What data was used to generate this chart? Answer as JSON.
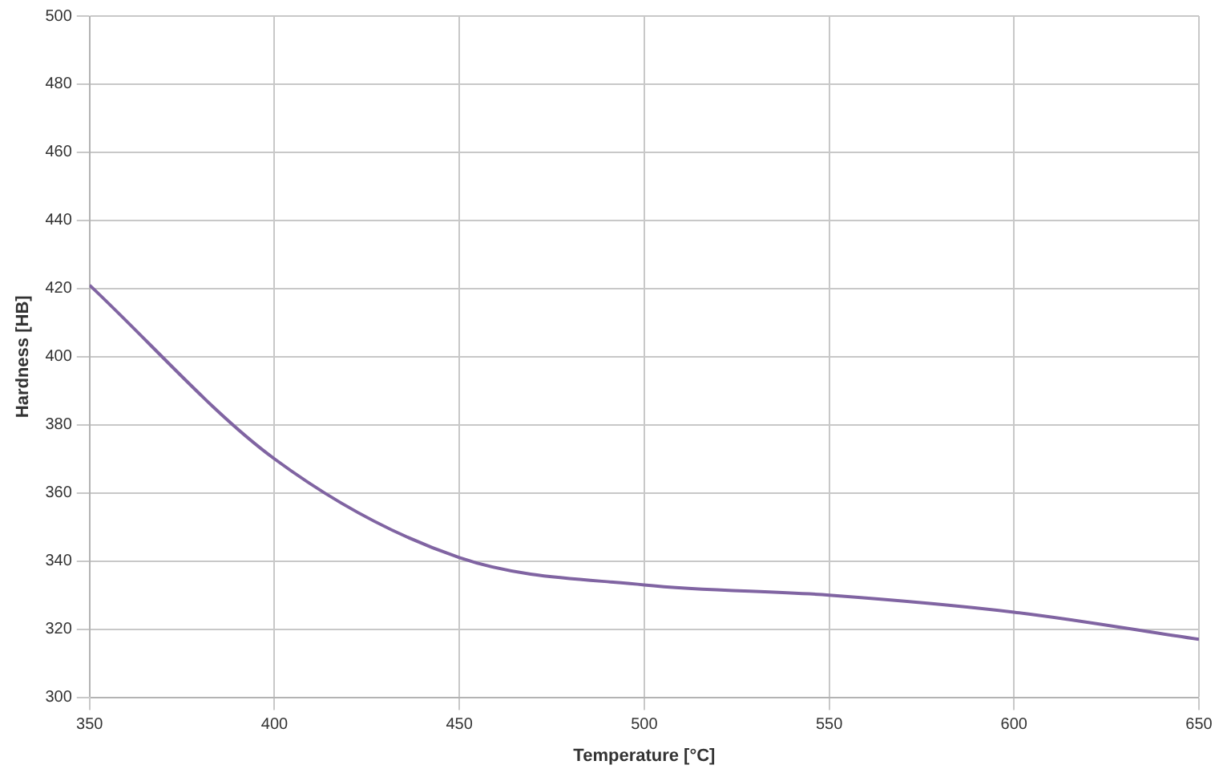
{
  "chart_data": {
    "type": "line",
    "xlabel": "Temperature [°C]",
    "ylabel": "Hardness [HB]",
    "x": [
      350,
      400,
      450,
      500,
      550,
      600,
      650
    ],
    "series": [
      {
        "color": "#8064a2",
        "values": [
          421,
          370,
          341,
          333,
          330,
          325,
          317
        ]
      }
    ],
    "xlim": [
      350,
      650
    ],
    "xticks": [
      350,
      400,
      450,
      500,
      550,
      600,
      650
    ],
    "ylim": [
      300,
      500
    ],
    "yticks": [
      300,
      320,
      340,
      360,
      380,
      400,
      420,
      440,
      460,
      480,
      500
    ],
    "grid": true,
    "legend": false
  }
}
